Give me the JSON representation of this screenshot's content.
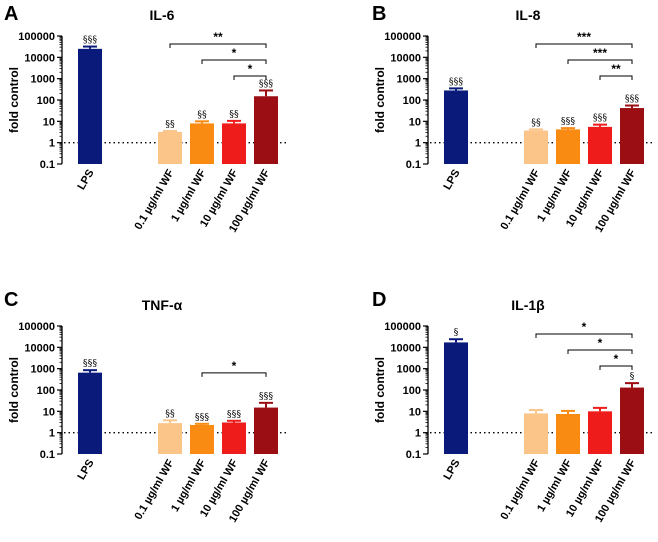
{
  "figure": {
    "background": "#ffffff"
  },
  "chart_data": [
    {
      "type": "bar",
      "panel_label": "A",
      "title": "IL-6",
      "ylabel": "fold control",
      "yscale": "log",
      "ylim": [
        0.1,
        100000
      ],
      "yticks": [
        "0.1",
        "1",
        "10",
        "100",
        "1000",
        "10000",
        "100000"
      ],
      "reference_line": 1,
      "categories": [
        "LPS",
        "0.1 µg/ml WF",
        "1 µg/ml WF",
        "10 µg/ml WF",
        "100 µg/ml WF"
      ],
      "values": [
        25000,
        3.2,
        8,
        8,
        150
      ],
      "error_upper": [
        32000,
        3.5,
        10,
        10.5,
        280
      ],
      "colors": [
        "#0a1a7a",
        "#fbc58a",
        "#f98a12",
        "#ef1c1c",
        "#9b0e14"
      ],
      "markers": [
        "§§§",
        "§§",
        "§§",
        "§§",
        "§§§"
      ],
      "comparisons": [
        {
          "from": 1,
          "to": 4,
          "label": "**"
        },
        {
          "from": 2,
          "to": 4,
          "label": "*"
        },
        {
          "from": 3,
          "to": 4,
          "label": "*"
        }
      ]
    },
    {
      "type": "bar",
      "panel_label": "B",
      "title": "IL-8",
      "ylabel": "fold control",
      "yscale": "log",
      "ylim": [
        0.1,
        100000
      ],
      "yticks": [
        "0.1",
        "1",
        "10",
        "100",
        "1000",
        "10000",
        "100000"
      ],
      "reference_line": 1,
      "categories": [
        "LPS",
        "0.1 µg/ml WF",
        "1 µg/ml WF",
        "10 µg/ml WF",
        "100 µg/ml WF"
      ],
      "values": [
        280,
        3.7,
        4.2,
        5.5,
        42
      ],
      "error_upper": [
        350,
        4.2,
        4.8,
        7,
        55
      ],
      "colors": [
        "#0a1a7a",
        "#fbc58a",
        "#f98a12",
        "#ef1c1c",
        "#9b0e14"
      ],
      "markers": [
        "§§§",
        "§§",
        "§§§",
        "§§§",
        "§§§"
      ],
      "comparisons": [
        {
          "from": 1,
          "to": 4,
          "label": "***"
        },
        {
          "from": 2,
          "to": 4,
          "label": "***"
        },
        {
          "from": 3,
          "to": 4,
          "label": "**"
        }
      ]
    },
    {
      "type": "bar",
      "panel_label": "C",
      "title": "TNF-α",
      "ylabel": "fold control",
      "yscale": "log",
      "ylim": [
        0.1,
        100000
      ],
      "yticks": [
        "0.1",
        "1",
        "10",
        "100",
        "1000",
        "10000",
        "100000"
      ],
      "reference_line": 1,
      "categories": [
        "LPS",
        "0.1 µg/ml WF",
        "1 µg/ml WF",
        "10 µg/ml WF",
        "100 µg/ml WF"
      ],
      "values": [
        650,
        2.8,
        2.3,
        3,
        15
      ],
      "error_upper": [
        850,
        3.8,
        2.6,
        3.6,
        25
      ],
      "colors": [
        "#0a1a7a",
        "#fbc58a",
        "#f98a12",
        "#ef1c1c",
        "#9b0e14"
      ],
      "markers": [
        "§§§",
        "§§",
        "§§§",
        "§§§",
        "§§§"
      ],
      "comparisons": [
        {
          "from": 2,
          "to": 4,
          "label": "*"
        }
      ]
    },
    {
      "type": "bar",
      "panel_label": "D",
      "title": "IL-1β",
      "ylabel": "fold control",
      "yscale": "log",
      "ylim": [
        0.1,
        100000
      ],
      "yticks": [
        "0.1",
        "1",
        "10",
        "100",
        "1000",
        "10000",
        "100000"
      ],
      "reference_line": 1,
      "categories": [
        "LPS",
        "0.1 µg/ml WF",
        "1 µg/ml WF",
        "10 µg/ml WF",
        "100 µg/ml WF"
      ],
      "values": [
        17000,
        8,
        7.5,
        10,
        130
      ],
      "error_upper": [
        24000,
        11.5,
        10.5,
        14.5,
        210
      ],
      "colors": [
        "#0a1a7a",
        "#fbc58a",
        "#f98a12",
        "#ef1c1c",
        "#9b0e14"
      ],
      "markers": [
        "§",
        "",
        "",
        "",
        "§"
      ],
      "comparisons": [
        {
          "from": 1,
          "to": 4,
          "label": "*"
        },
        {
          "from": 2,
          "to": 4,
          "label": "*"
        },
        {
          "from": 3,
          "to": 4,
          "label": "*"
        }
      ]
    }
  ]
}
